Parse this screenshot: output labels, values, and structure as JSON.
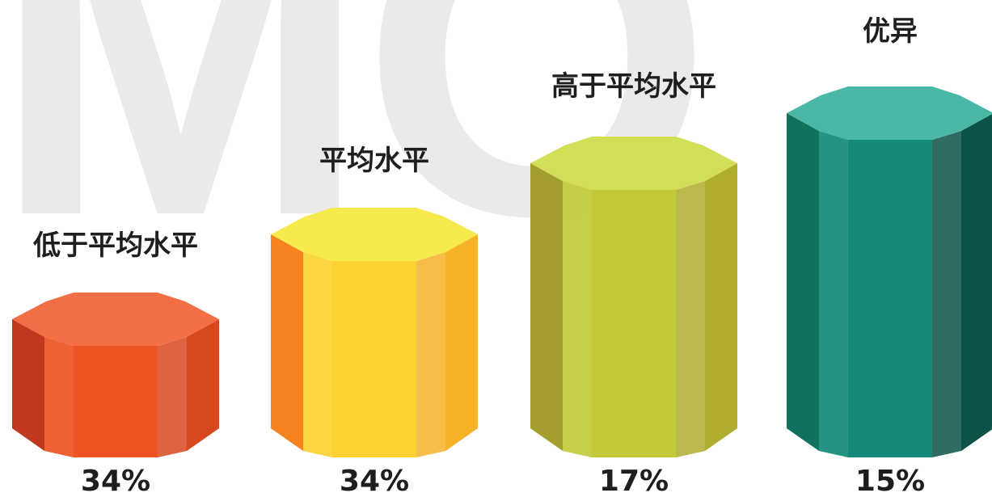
{
  "watermark": "MO",
  "chart_data": {
    "type": "bar",
    "categories": [
      "低于平均水平",
      "平均水平",
      "高于平均水平",
      "优异"
    ],
    "value_labels": [
      "34%",
      "34%",
      "17%",
      "15%"
    ],
    "values": [
      34,
      34,
      17,
      15
    ],
    "title": "",
    "xlabel": "",
    "ylabel": "",
    "colors": [
      {
        "top": "#F26E44",
        "front": "#EE5323",
        "left": "#C0391E",
        "right": "#D8481E"
      },
      {
        "top": "#F7EA4D",
        "front": "#FBD232",
        "left": "#F58320",
        "right": "#F6B228"
      },
      {
        "top": "#D3DE58",
        "front": "#C2CA37",
        "left": "#A49E2E",
        "right": "#B0AC2E"
      },
      {
        "top": "#4AB8A6",
        "front": "#158A79",
        "left": "#12705F",
        "right": "#0C5246"
      }
    ]
  }
}
